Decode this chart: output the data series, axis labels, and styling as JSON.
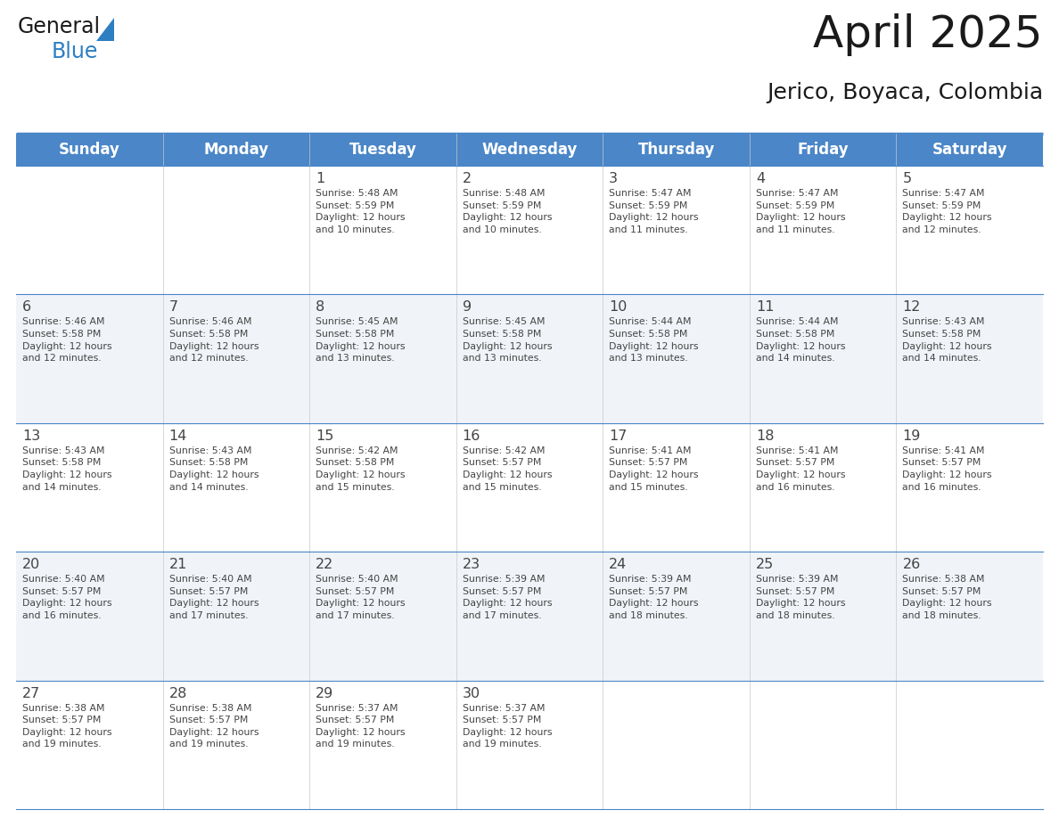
{
  "title": "April 2025",
  "subtitle": "Jerico, Boyaca, Colombia",
  "header_bg": "#4a86c8",
  "header_text": "#FFFFFF",
  "row_bg_even": "#FFFFFF",
  "row_bg_odd": "#f0f4f8",
  "border_color": "#4a86c8",
  "text_color": "#444444",
  "days_of_week": [
    "Sunday",
    "Monday",
    "Tuesday",
    "Wednesday",
    "Thursday",
    "Friday",
    "Saturday"
  ],
  "weeks": [
    [
      {
        "day": "",
        "info": ""
      },
      {
        "day": "",
        "info": ""
      },
      {
        "day": "1",
        "info": "Sunrise: 5:48 AM\nSunset: 5:59 PM\nDaylight: 12 hours\nand 10 minutes."
      },
      {
        "day": "2",
        "info": "Sunrise: 5:48 AM\nSunset: 5:59 PM\nDaylight: 12 hours\nand 10 minutes."
      },
      {
        "day": "3",
        "info": "Sunrise: 5:47 AM\nSunset: 5:59 PM\nDaylight: 12 hours\nand 11 minutes."
      },
      {
        "day": "4",
        "info": "Sunrise: 5:47 AM\nSunset: 5:59 PM\nDaylight: 12 hours\nand 11 minutes."
      },
      {
        "day": "5",
        "info": "Sunrise: 5:47 AM\nSunset: 5:59 PM\nDaylight: 12 hours\nand 12 minutes."
      }
    ],
    [
      {
        "day": "6",
        "info": "Sunrise: 5:46 AM\nSunset: 5:58 PM\nDaylight: 12 hours\nand 12 minutes."
      },
      {
        "day": "7",
        "info": "Sunrise: 5:46 AM\nSunset: 5:58 PM\nDaylight: 12 hours\nand 12 minutes."
      },
      {
        "day": "8",
        "info": "Sunrise: 5:45 AM\nSunset: 5:58 PM\nDaylight: 12 hours\nand 13 minutes."
      },
      {
        "day": "9",
        "info": "Sunrise: 5:45 AM\nSunset: 5:58 PM\nDaylight: 12 hours\nand 13 minutes."
      },
      {
        "day": "10",
        "info": "Sunrise: 5:44 AM\nSunset: 5:58 PM\nDaylight: 12 hours\nand 13 minutes."
      },
      {
        "day": "11",
        "info": "Sunrise: 5:44 AM\nSunset: 5:58 PM\nDaylight: 12 hours\nand 14 minutes."
      },
      {
        "day": "12",
        "info": "Sunrise: 5:43 AM\nSunset: 5:58 PM\nDaylight: 12 hours\nand 14 minutes."
      }
    ],
    [
      {
        "day": "13",
        "info": "Sunrise: 5:43 AM\nSunset: 5:58 PM\nDaylight: 12 hours\nand 14 minutes."
      },
      {
        "day": "14",
        "info": "Sunrise: 5:43 AM\nSunset: 5:58 PM\nDaylight: 12 hours\nand 14 minutes."
      },
      {
        "day": "15",
        "info": "Sunrise: 5:42 AM\nSunset: 5:58 PM\nDaylight: 12 hours\nand 15 minutes."
      },
      {
        "day": "16",
        "info": "Sunrise: 5:42 AM\nSunset: 5:57 PM\nDaylight: 12 hours\nand 15 minutes."
      },
      {
        "day": "17",
        "info": "Sunrise: 5:41 AM\nSunset: 5:57 PM\nDaylight: 12 hours\nand 15 minutes."
      },
      {
        "day": "18",
        "info": "Sunrise: 5:41 AM\nSunset: 5:57 PM\nDaylight: 12 hours\nand 16 minutes."
      },
      {
        "day": "19",
        "info": "Sunrise: 5:41 AM\nSunset: 5:57 PM\nDaylight: 12 hours\nand 16 minutes."
      }
    ],
    [
      {
        "day": "20",
        "info": "Sunrise: 5:40 AM\nSunset: 5:57 PM\nDaylight: 12 hours\nand 16 minutes."
      },
      {
        "day": "21",
        "info": "Sunrise: 5:40 AM\nSunset: 5:57 PM\nDaylight: 12 hours\nand 17 minutes."
      },
      {
        "day": "22",
        "info": "Sunrise: 5:40 AM\nSunset: 5:57 PM\nDaylight: 12 hours\nand 17 minutes."
      },
      {
        "day": "23",
        "info": "Sunrise: 5:39 AM\nSunset: 5:57 PM\nDaylight: 12 hours\nand 17 minutes."
      },
      {
        "day": "24",
        "info": "Sunrise: 5:39 AM\nSunset: 5:57 PM\nDaylight: 12 hours\nand 18 minutes."
      },
      {
        "day": "25",
        "info": "Sunrise: 5:39 AM\nSunset: 5:57 PM\nDaylight: 12 hours\nand 18 minutes."
      },
      {
        "day": "26",
        "info": "Sunrise: 5:38 AM\nSunset: 5:57 PM\nDaylight: 12 hours\nand 18 minutes."
      }
    ],
    [
      {
        "day": "27",
        "info": "Sunrise: 5:38 AM\nSunset: 5:57 PM\nDaylight: 12 hours\nand 19 minutes."
      },
      {
        "day": "28",
        "info": "Sunrise: 5:38 AM\nSunset: 5:57 PM\nDaylight: 12 hours\nand 19 minutes."
      },
      {
        "day": "29",
        "info": "Sunrise: 5:37 AM\nSunset: 5:57 PM\nDaylight: 12 hours\nand 19 minutes."
      },
      {
        "day": "30",
        "info": "Sunrise: 5:37 AM\nSunset: 5:57 PM\nDaylight: 12 hours\nand 19 minutes."
      },
      {
        "day": "",
        "info": ""
      },
      {
        "day": "",
        "info": ""
      },
      {
        "day": "",
        "info": ""
      }
    ]
  ],
  "logo_general_color": "#1a1a1a",
  "logo_blue_color": "#2e7fc2",
  "logo_triangle_color": "#2e7fc2",
  "fig_width": 11.88,
  "fig_height": 9.18,
  "dpi": 100
}
